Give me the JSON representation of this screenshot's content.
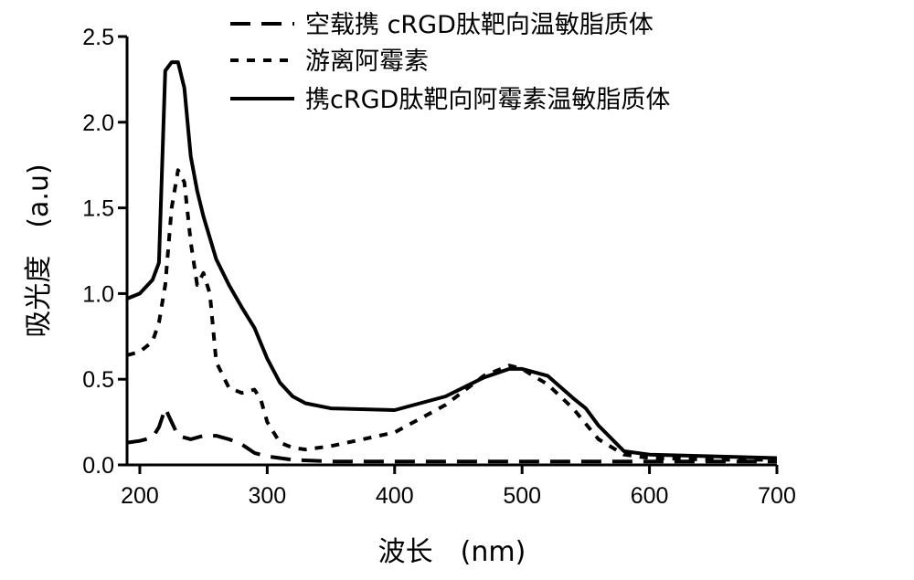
{
  "chart_data": {
    "type": "line",
    "title": "",
    "xlabel": "波长　(nm)",
    "ylabel": "吸光度　(a.u)",
    "xlim": [
      190,
      700
    ],
    "ylim": [
      0,
      2.5
    ],
    "x_ticks": [
      200,
      300,
      400,
      500,
      600,
      700
    ],
    "y_ticks": [
      0.0,
      0.5,
      1.0,
      1.5,
      2.0,
      2.5
    ],
    "x_tick_labels": [
      "200",
      "300",
      "400",
      "500",
      "600",
      "700"
    ],
    "y_tick_labels": [
      "0.0",
      "0.5",
      "1.0",
      "1.5",
      "2.0",
      "2.5"
    ],
    "grid": false,
    "legend_position": "top-right",
    "series": [
      {
        "name": "空载携 cRGD肽靶向温敏脂质体",
        "style": "dash",
        "x": [
          190,
          200,
          210,
          215,
          220,
          225,
          230,
          240,
          250,
          260,
          270,
          280,
          290,
          300,
          320,
          350,
          400,
          450,
          500,
          550,
          600,
          650,
          700
        ],
        "y": [
          0.13,
          0.14,
          0.16,
          0.22,
          0.33,
          0.25,
          0.17,
          0.15,
          0.17,
          0.17,
          0.15,
          0.12,
          0.07,
          0.05,
          0.03,
          0.02,
          0.02,
          0.02,
          0.02,
          0.02,
          0.02,
          0.02,
          0.02
        ]
      },
      {
        "name": "游离阿霉素",
        "style": "dot",
        "x": [
          190,
          200,
          210,
          215,
          220,
          225,
          230,
          235,
          240,
          245,
          250,
          255,
          260,
          270,
          280,
          290,
          295,
          300,
          310,
          320,
          330,
          350,
          400,
          440,
          470,
          490,
          500,
          520,
          540,
          560,
          580,
          600,
          650,
          700
        ],
        "y": [
          0.64,
          0.66,
          0.72,
          0.83,
          1.05,
          1.5,
          1.72,
          1.65,
          1.3,
          1.05,
          1.12,
          1.0,
          0.6,
          0.45,
          0.42,
          0.44,
          0.38,
          0.25,
          0.13,
          0.1,
          0.09,
          0.11,
          0.19,
          0.35,
          0.52,
          0.58,
          0.56,
          0.47,
          0.33,
          0.15,
          0.06,
          0.04,
          0.03,
          0.03
        ]
      },
      {
        "name": "携cRGD肽靶向阿霉素温敏脂质体",
        "style": "solid",
        "x": [
          190,
          200,
          210,
          215,
          220,
          225,
          230,
          235,
          240,
          245,
          250,
          260,
          270,
          280,
          290,
          300,
          310,
          320,
          330,
          350,
          400,
          440,
          470,
          490,
          500,
          520,
          540,
          550,
          560,
          580,
          600,
          650,
          700
        ],
        "y": [
          0.97,
          1.0,
          1.08,
          1.18,
          2.3,
          2.35,
          2.35,
          2.2,
          1.8,
          1.6,
          1.45,
          1.2,
          1.05,
          0.92,
          0.8,
          0.62,
          0.48,
          0.4,
          0.36,
          0.33,
          0.32,
          0.4,
          0.51,
          0.56,
          0.56,
          0.52,
          0.39,
          0.33,
          0.23,
          0.08,
          0.06,
          0.05,
          0.04
        ]
      }
    ]
  }
}
